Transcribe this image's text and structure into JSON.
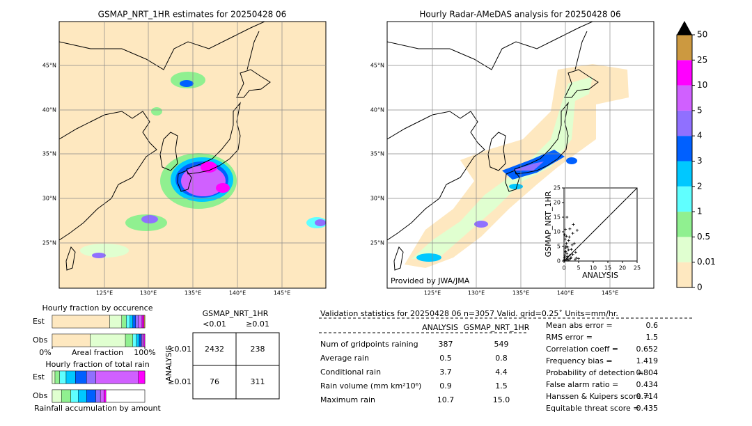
{
  "left_map": {
    "title": "GSMAP_NRT_1HR estimates for 20250428 06",
    "lat_labels": [
      "45°N",
      "40°N",
      "35°N",
      "30°N",
      "25°N"
    ],
    "lon_labels": [
      "125°E",
      "130°E",
      "135°E",
      "140°E",
      "145°E"
    ]
  },
  "right_map": {
    "title": "Hourly Radar-AMeDAS analysis for 20250428 06",
    "lat_labels": [
      "45°N",
      "40°N",
      "35°N",
      "30°N",
      "25°N"
    ],
    "lon_labels": [
      "125°E",
      "130°E",
      "135°E",
      "140°E",
      "145°E"
    ],
    "credit": "Provided by JWA/JMA"
  },
  "colorbar": {
    "levels": [
      0,
      0.01,
      0.5,
      1,
      2,
      3,
      4,
      5,
      10,
      25,
      50
    ],
    "colors": [
      "#fee8c0",
      "#e0ffd0",
      "#90f090",
      "#60ffff",
      "#00c8ff",
      "#0060ff",
      "#9070ff",
      "#d060ff",
      "#ff00ff",
      "#cc9940"
    ],
    "extend_color": "#000000"
  },
  "chart_data": {
    "type": "scatter",
    "xlabel": "ANALYSIS",
    "ylabel": "GSMAP_NRT_1HR",
    "xlim": [
      0,
      25
    ],
    "ylim": [
      0,
      25
    ],
    "xticks": [
      0,
      5,
      10,
      15,
      20,
      25
    ],
    "yticks": [
      0,
      5,
      10,
      15,
      20,
      25
    ],
    "color": "#000000",
    "x": [
      0.1,
      0.2,
      0.3,
      0.5,
      0.6,
      0.8,
      1.0,
      1.2,
      0.4,
      0.7,
      1.5,
      1.8,
      2.0,
      2.2,
      2.5,
      3.0,
      3.2,
      3.5,
      4.0,
      4.5,
      0.3,
      0.9,
      1.1,
      1.4,
      2.8,
      0.2,
      0.5,
      1.0,
      1.6,
      2.4,
      3.8,
      5.0,
      0.6,
      1.3,
      0.1,
      2.0,
      3.0,
      0.8,
      1.7,
      4.2
    ],
    "y": [
      0.5,
      1.2,
      2.0,
      3.1,
      4.5,
      6.0,
      2.5,
      1.0,
      7.5,
      5.0,
      3.8,
      8.2,
      2.0,
      0.8,
      4.0,
      9.5,
      12.5,
      6.0,
      3.0,
      10.5,
      0.2,
      0.6,
      1.5,
      0.3,
      5.5,
      9.0,
      10.8,
      15.0,
      7.0,
      1.2,
      0.5,
      0.8,
      3.3,
      4.8,
      0.1,
      11.0,
      2.2,
      8.5,
      0.4,
      1.0
    ]
  },
  "occurrence": {
    "title": "Hourly fraction by occurence",
    "rows": [
      "Est",
      "Obs"
    ],
    "xlim": [
      0,
      100
    ],
    "xticks": [
      {
        "value": 0,
        "label": "0%"
      },
      {
        "value": 100,
        "label": "100%"
      }
    ],
    "xlabel": "Areal fraction",
    "values": [
      [
        62,
        13,
        5,
        4,
        3,
        3,
        3,
        4,
        2,
        1
      ],
      [
        41,
        38,
        8,
        4,
        3,
        2,
        1,
        2,
        1,
        0
      ]
    ]
  },
  "total_rain": {
    "title": "Hourly fraction of total rain",
    "rows": [
      "Est",
      "Obs"
    ],
    "xlabel": "Rainfall accumulation by amount",
    "xlim": [
      0,
      100
    ],
    "values": [
      [
        0,
        3,
        5,
        7,
        10,
        12,
        10,
        46,
        7,
        0
      ],
      [
        0,
        10,
        10,
        8,
        9,
        10,
        5,
        4,
        2,
        0
      ]
    ]
  },
  "contingency": {
    "title": "GSMAP_NRT_1HR",
    "columns": [
      "<0.01",
      "≥0.01"
    ],
    "rows": [
      "<0.01",
      "≥0.01"
    ],
    "row_axis": "ANALYSIS",
    "cells": [
      [
        "2432",
        "238"
      ],
      [
        "76",
        "311"
      ]
    ]
  },
  "validation": {
    "header": "Validation statistics for 20250428 06  n=3057 Valid. grid=0.25˚ Units=mm/hr.",
    "columns": [
      "ANALYSIS",
      "GSMAP_NRT_1HR"
    ],
    "rows": [
      [
        "Num of gridpoints raining",
        "387",
        "549"
      ],
      [
        "Average rain",
        "0.5",
        "0.8"
      ],
      [
        "Conditional rain",
        "3.7",
        "4.4"
      ],
      [
        "Rain volume (mm km²10⁶)",
        "0.9",
        "1.5"
      ],
      [
        "Maximum rain",
        "10.7",
        "15.0"
      ]
    ],
    "scores": [
      [
        "Mean abs error =",
        "0.6"
      ],
      [
        "RMS error =",
        "1.5"
      ],
      [
        "Correlation coeff =",
        "0.652"
      ],
      [
        "Frequency bias =",
        "1.419"
      ],
      [
        "Probability of detection =",
        "0.804"
      ],
      [
        "False alarm ratio =",
        "0.434"
      ],
      [
        "Hanssen & Kuipers score =",
        "0.714"
      ],
      [
        "Equitable threat score =",
        "0.435"
      ]
    ]
  }
}
